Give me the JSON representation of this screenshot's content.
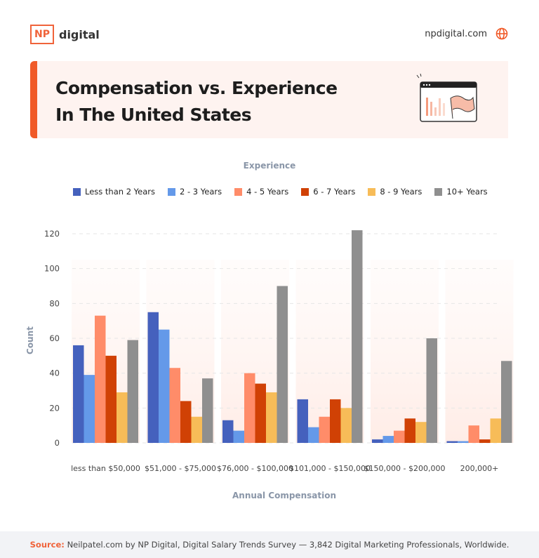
{
  "brand": {
    "logo_mark": "NP",
    "logo_word": "digital",
    "site": "npdigital.com",
    "site_icon": "globe-icon",
    "accent": "#f05a28"
  },
  "title": {
    "line1": "Compensation vs. Experience",
    "line2": "In The United States"
  },
  "chart_data": {
    "type": "bar",
    "legend_title": "Experience",
    "legend_position": "top",
    "xlabel": "Annual Compensation",
    "ylabel": "Count",
    "ylim": [
      0,
      120
    ],
    "yticks": [
      0,
      20,
      40,
      60,
      80,
      100,
      120
    ],
    "grid": true,
    "categories": [
      "less than $50,000",
      "$51,000 - $75,000",
      "$76,000 - $100,000",
      "$101,000 - $150,000",
      "$150,000 - $200,000",
      "200,000+"
    ],
    "series": [
      {
        "name": "Less than 2 Years",
        "color": "#4561bd",
        "values": [
          56,
          75,
          13,
          25,
          2,
          1
        ]
      },
      {
        "name": "2 - 3 Years",
        "color": "#6499e9",
        "values": [
          39,
          65,
          7,
          9,
          4,
          1
        ]
      },
      {
        "name": "4 - 5 Years",
        "color": "#ff8c69",
        "values": [
          73,
          43,
          40,
          15,
          7,
          10
        ]
      },
      {
        "name": "6 - 7 Years",
        "color": "#d04105",
        "values": [
          50,
          24,
          34,
          25,
          14,
          2
        ]
      },
      {
        "name": "8 - 9 Years",
        "color": "#f7bc58",
        "values": [
          29,
          15,
          29,
          20,
          12,
          14
        ]
      },
      {
        "name": "10+ Years",
        "color": "#8f8f8f",
        "values": [
          59,
          37,
          90,
          122,
          60,
          47
        ]
      }
    ]
  },
  "footer": {
    "source_label": "Source:",
    "source_text": "Neilpatel.com by NP Digital, Digital Salary Trends Survey — 3,842 Digital Marketing Professionals, Worldwide."
  }
}
